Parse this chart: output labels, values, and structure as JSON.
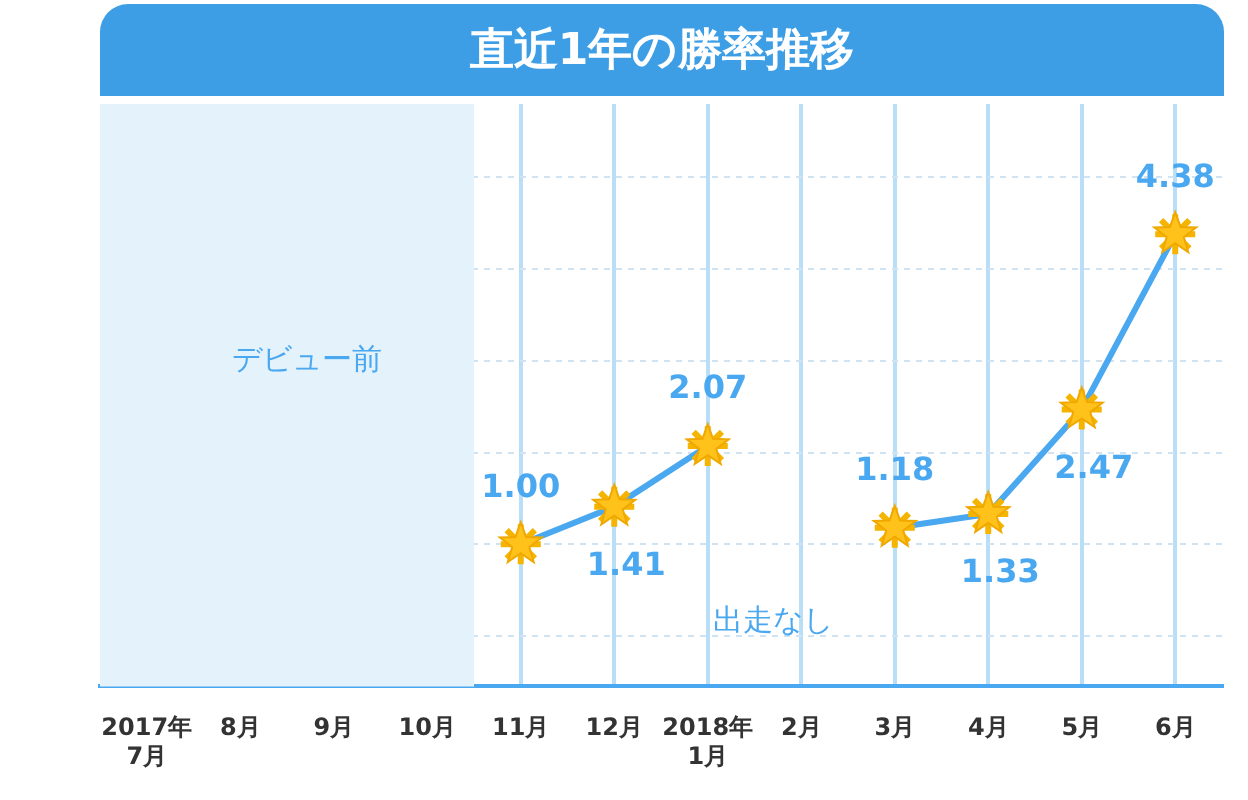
{
  "chart_data": {
    "type": "line",
    "title": "直近1年の勝率推移",
    "categories": [
      "2017年\n7月",
      "8月",
      "9月",
      "10月",
      "11月",
      "12月",
      "2018年\n1月",
      "2月",
      "3月",
      "4月",
      "5月",
      "6月"
    ],
    "series": [
      {
        "color": "#4aa8f0",
        "values": [
          null,
          null,
          null,
          null,
          1.0,
          1.41,
          2.07,
          null,
          1.18,
          1.33,
          2.47,
          4.38
        ],
        "value_labels": [
          null,
          null,
          null,
          null,
          "1.00",
          "1.41",
          "2.07",
          null,
          "1.18",
          "1.33",
          "2.47",
          "4.38"
        ]
      }
    ],
    "ylim": [
      -0.55,
      5.8
    ],
    "yticks": [
      {
        "value": 0,
        "label": null
      },
      {
        "value": 1,
        "label": null
      },
      {
        "value": 2,
        "label": null
      },
      {
        "value": 3,
        "label": null
      },
      {
        "value": 4,
        "label": null
      },
      {
        "value": 5,
        "label": null
      }
    ],
    "tick_labels": "x",
    "grid": true,
    "legend": false,
    "marker": "star",
    "line_style": "solid",
    "bands": [
      {
        "axis": "x",
        "from": "2017年\n7月",
        "to": "10月",
        "label": "デビュー前",
        "color": "#e4f2fc"
      }
    ],
    "annotations": [
      "出走なし"
    ]
  }
}
